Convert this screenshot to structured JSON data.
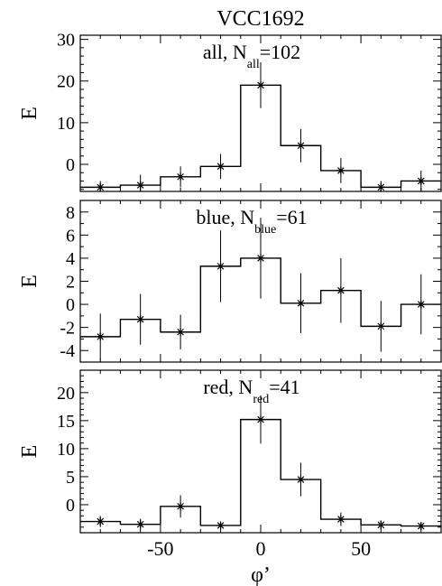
{
  "figure": {
    "title": "VCC1692",
    "xlabel": "φ’"
  },
  "chart_data": [
    {
      "type": "step",
      "panel_label_prefix": "all, N",
      "panel_label_sub": "all",
      "panel_label_value": "=102",
      "ylabel": "E",
      "xlim": [
        -90,
        90
      ],
      "ylim": [
        -6.5,
        31
      ],
      "yticks": [
        0,
        10,
        20,
        30
      ],
      "xticks": [
        -50,
        0,
        50
      ],
      "series": [
        {
          "x": [
            -80,
            -60,
            -40,
            -20,
            0,
            20,
            40,
            60,
            80
          ],
          "y": [
            -5.5,
            -5,
            -3,
            -0.5,
            19,
            4.5,
            -1.5,
            -5.5,
            -4
          ],
          "yerr": [
            1.5,
            2.5,
            2.5,
            3,
            5.5,
            4,
            3,
            1.5,
            2.5
          ]
        }
      ]
    },
    {
      "type": "step",
      "panel_label_prefix": "blue, N",
      "panel_label_sub": "blue",
      "panel_label_value": "=61",
      "ylabel": "E",
      "xlim": [
        -90,
        90
      ],
      "ylim": [
        -5,
        9
      ],
      "yticks": [
        -4,
        -2,
        0,
        2,
        4,
        6,
        8
      ],
      "xticks": [
        -50,
        0,
        50
      ],
      "series": [
        {
          "x": [
            -80,
            -60,
            -40,
            -20,
            0,
            20,
            40,
            60,
            80
          ],
          "y": [
            -2.8,
            -1.3,
            -2.4,
            3.3,
            4,
            0.1,
            1.2,
            -1.9,
            0
          ],
          "yerr": [
            2,
            2.2,
            1.5,
            3.1,
            3.5,
            2.6,
            2.8,
            2.2,
            2.6
          ]
        }
      ]
    },
    {
      "type": "step",
      "panel_label_prefix": "red, N",
      "panel_label_sub": "red",
      "panel_label_value": "=41",
      "ylabel": "E",
      "xlim": [
        -90,
        90
      ],
      "ylim": [
        -5,
        24
      ],
      "yticks": [
        0,
        5,
        10,
        15,
        20
      ],
      "xticks": [
        -50,
        0,
        50
      ],
      "series": [
        {
          "x": [
            -80,
            -60,
            -40,
            -20,
            0,
            20,
            40,
            60,
            80
          ],
          "y": [
            -3,
            -3.5,
            -0.3,
            -3.7,
            15.2,
            4.5,
            -2.6,
            -3.6,
            -3.8
          ],
          "yerr": [
            1,
            1,
            2,
            0.7,
            4.3,
            3,
            1.2,
            0.8,
            0.6
          ]
        }
      ]
    }
  ]
}
